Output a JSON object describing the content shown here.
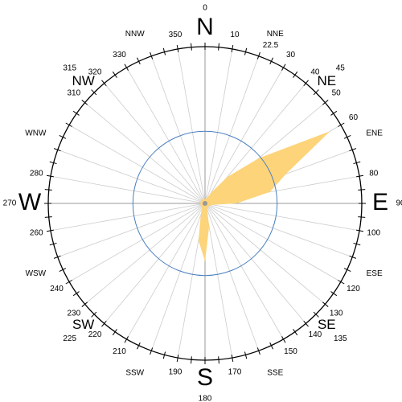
{
  "chart_data": {
    "type": "polar_area",
    "directions": [
      0,
      10,
      20,
      30,
      40,
      50,
      60,
      70,
      80,
      90,
      100,
      110,
      120,
      130,
      140,
      150,
      160,
      170,
      180,
      190,
      200,
      210,
      220,
      230,
      240,
      250,
      260,
      270,
      280,
      290,
      300,
      310,
      320,
      330,
      340,
      350
    ],
    "values": [
      3,
      3,
      4,
      8,
      22,
      45,
      92,
      55,
      42,
      20,
      5,
      4,
      3,
      3,
      3,
      3,
      4,
      15,
      37,
      24,
      8,
      4,
      3,
      3,
      3,
      3,
      3,
      3,
      3,
      3,
      3,
      3,
      3,
      3,
      3,
      3
    ],
    "color": "#fdd47a",
    "rlim": [
      0,
      100
    ],
    "inner_ring": 46,
    "degree_labels": [
      0,
      10,
      22.5,
      30,
      40,
      45,
      50,
      60,
      80,
      90,
      100,
      120,
      130,
      135,
      140,
      150,
      170,
      180,
      190,
      210,
      220,
      225,
      230,
      240,
      260,
      270,
      280,
      310,
      315,
      320,
      330,
      350
    ],
    "compass_points": [
      {
        "name": "N",
        "angle": 0
      },
      {
        "name": "NNE",
        "angle": 22.5
      },
      {
        "name": "NE",
        "angle": 45
      },
      {
        "name": "ENE",
        "angle": 67.5
      },
      {
        "name": "E",
        "angle": 90
      },
      {
        "name": "ESE",
        "angle": 112.5
      },
      {
        "name": "SE",
        "angle": 135
      },
      {
        "name": "SSE",
        "angle": 157.5
      },
      {
        "name": "S",
        "angle": 180
      },
      {
        "name": "SSW",
        "angle": 202.5
      },
      {
        "name": "SW",
        "angle": 225
      },
      {
        "name": "WSW",
        "angle": 247.5
      },
      {
        "name": "W",
        "angle": 270
      },
      {
        "name": "WNW",
        "angle": 292.5
      },
      {
        "name": "NW",
        "angle": 315
      },
      {
        "name": "NNW",
        "angle": 337.5
      }
    ]
  }
}
